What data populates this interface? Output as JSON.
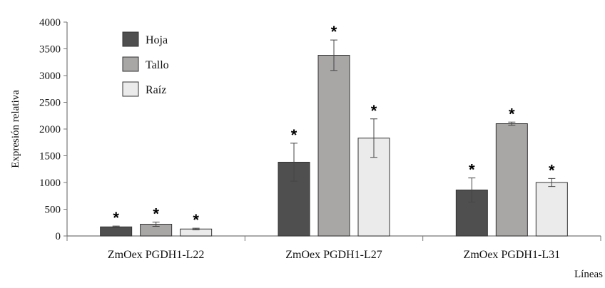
{
  "chart_data": {
    "type": "bar",
    "ylabel": "Expresión relativa",
    "xlabel": "Líneas",
    "ylim": [
      0,
      4000
    ],
    "yticks": [
      0,
      500,
      1000,
      1500,
      2000,
      2500,
      3000,
      3500,
      4000
    ],
    "categories": [
      "ZmOex PGDH1-L22",
      "ZmOex PGDH1-L27",
      "ZmOex PGDH1-L31"
    ],
    "legend_position": "top-left",
    "grid": false,
    "significance_marker": "*",
    "series": [
      {
        "name": "Hoja",
        "color": "#4f4f4f",
        "values": [
          170,
          1380,
          860
        ],
        "errors": [
          15,
          355,
          225
        ]
      },
      {
        "name": "Tallo",
        "color": "#a9a6a6",
        "values": [
          220,
          3380,
          2100
        ],
        "errors": [
          40,
          285,
          30
        ]
      },
      {
        "name": "Raíz",
        "color": "#ebebeb",
        "values": [
          130,
          1830,
          1000
        ],
        "errors": [
          15,
          360,
          75
        ]
      }
    ]
  }
}
